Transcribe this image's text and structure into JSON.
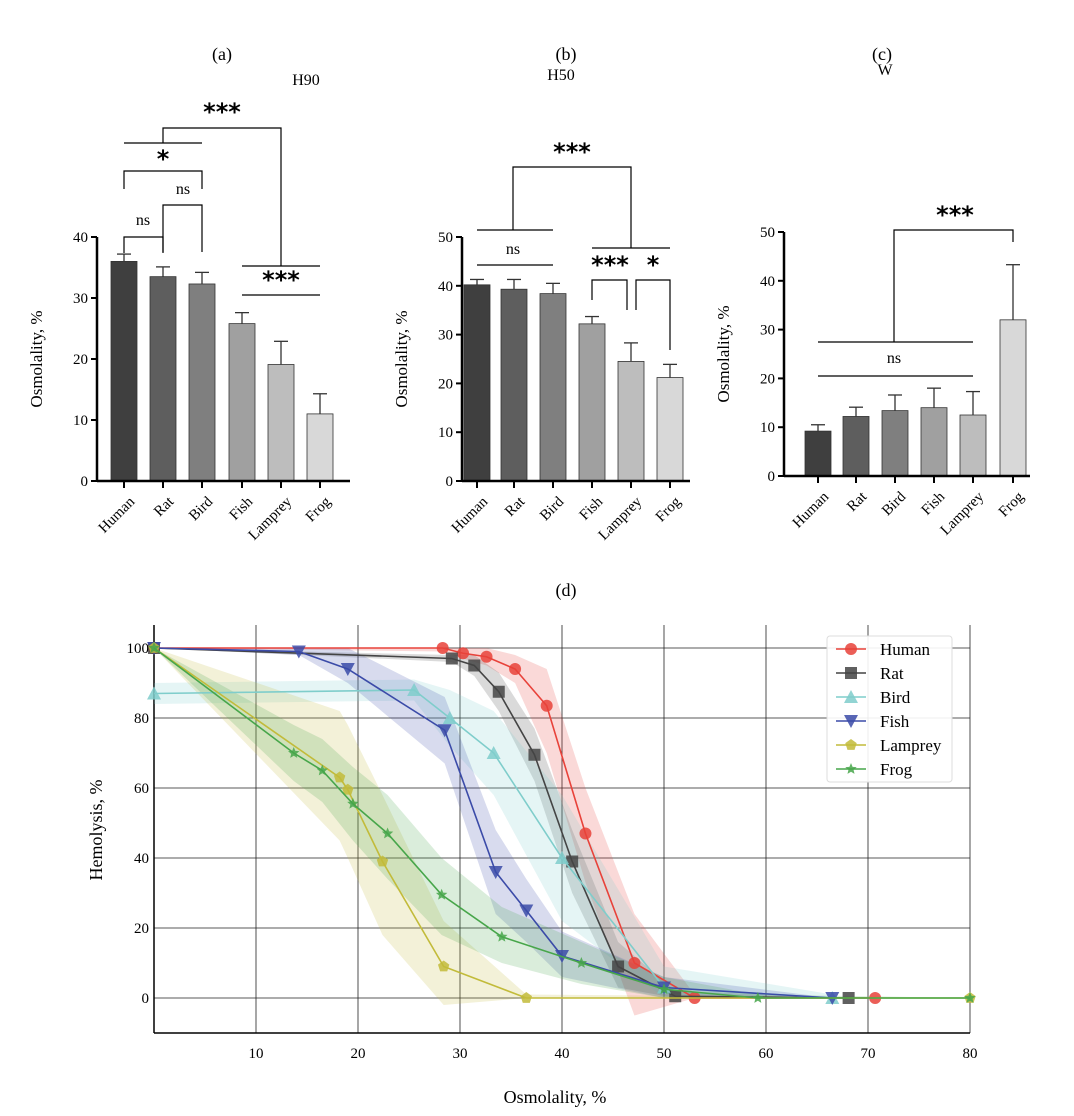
{
  "chart_data": [
    {
      "type": "bar",
      "panel_label": "(a)",
      "title": "H90",
      "ylabel": "Osmolality, %",
      "ylim": [
        0,
        40
      ],
      "yticks": [
        0,
        10,
        20,
        30,
        40
      ],
      "categories": [
        "Human",
        "Rat",
        "Bird",
        "Fish",
        "Lamprey",
        "Frog"
      ],
      "values": [
        36,
        33.5,
        32.3,
        25.8,
        19.1,
        11
      ],
      "error_upper": [
        37.2,
        35.1,
        34.2,
        27.6,
        22.9,
        14.3
      ],
      "colors": [
        "#3f3f3f",
        "#5e5e5e",
        "#7f7f7f",
        "#a0a0a0",
        "#bdbdbd",
        "#d8d8d8"
      ],
      "significance": [
        {
          "label": "ns",
          "groups": [
            "Human",
            "Rat"
          ]
        },
        {
          "label": "ns",
          "groups": [
            "Rat",
            "Bird"
          ]
        },
        {
          "label": "*",
          "groups": [
            "Human",
            "Bird"
          ]
        },
        {
          "label": "***",
          "groups": [
            "Human-Rat-Bird",
            "Fish-Lamprey-Frog"
          ]
        },
        {
          "label": "***",
          "groups": [
            "Fish",
            "Frog"
          ]
        }
      ]
    },
    {
      "type": "bar",
      "panel_label": "(b)",
      "title": "H50",
      "ylabel": "Osmolality, %",
      "ylim": [
        0,
        50
      ],
      "yticks": [
        0,
        10,
        20,
        30,
        40,
        50
      ],
      "categories": [
        "Human",
        "Rat",
        "Bird",
        "Fish",
        "Lamprey",
        "Frog"
      ],
      "values": [
        40.2,
        39.3,
        38.4,
        32.2,
        24.5,
        21.2
      ],
      "error_upper": [
        41.3,
        41.3,
        40.5,
        33.7,
        28.3,
        23.9
      ],
      "colors": [
        "#3f3f3f",
        "#5e5e5e",
        "#7f7f7f",
        "#a0a0a0",
        "#bdbdbd",
        "#d8d8d8"
      ],
      "significance": [
        {
          "label": "ns",
          "groups": [
            "Human",
            "Bird"
          ]
        },
        {
          "label": "***",
          "groups": [
            "Human-Rat-Bird",
            "Fish-Frog"
          ]
        },
        {
          "label": "***",
          "groups": [
            "Fish",
            "Lamprey"
          ]
        },
        {
          "label": "*",
          "groups": [
            "Lamprey",
            "Frog"
          ]
        }
      ]
    },
    {
      "type": "bar",
      "panel_label": "(c)",
      "title": "W",
      "ylabel": "Osmolality, %",
      "ylim": [
        0,
        50
      ],
      "yticks": [
        0,
        10,
        20,
        30,
        40,
        50
      ],
      "categories": [
        "Human",
        "Rat",
        "Bird",
        "Fish",
        "Lamprey",
        "Frog"
      ],
      "values": [
        9.2,
        12.2,
        13.4,
        14,
        12.5,
        32
      ],
      "error_upper": [
        10.5,
        14.1,
        16.6,
        18,
        17.3,
        43.3
      ],
      "colors": [
        "#3f3f3f",
        "#5e5e5e",
        "#7f7f7f",
        "#a0a0a0",
        "#bdbdbd",
        "#d8d8d8"
      ],
      "significance": [
        {
          "label": "ns",
          "groups": [
            "Human",
            "Lamprey"
          ]
        },
        {
          "label": "***",
          "groups": [
            "Human-Lamprey",
            "Frog"
          ]
        }
      ]
    },
    {
      "type": "line",
      "panel_label": "(d)",
      "xlabel": "Osmolality, %",
      "ylabel": "Hemolysis, %",
      "xlim": [
        0,
        80
      ],
      "ylim": [
        -10,
        105
      ],
      "xticks": [
        10,
        20,
        30,
        40,
        50,
        60,
        70,
        80
      ],
      "yticks": [
        0,
        20,
        40,
        60,
        80,
        100
      ],
      "grid": true,
      "legend": "top-right",
      "series": [
        {
          "name": "Human",
          "color": "#e8423a",
          "marker": "circle",
          "x": [
            0,
            28.3,
            30.3,
            32.6,
            35.4,
            38.5,
            42.3,
            47.1,
            53,
            70.7
          ],
          "y": [
            100,
            100,
            98.5,
            97.5,
            94,
            83.5,
            47,
            10,
            0,
            0
          ],
          "lower": [
            100,
            99,
            97,
            95,
            90,
            70,
            33,
            -5,
            0,
            0
          ],
          "upper": [
            100,
            100,
            100,
            100,
            98,
            94,
            60,
            24,
            1,
            0
          ]
        },
        {
          "name": "Rat",
          "color": "#444444",
          "marker": "square",
          "x": [
            0,
            29.2,
            31.4,
            33.8,
            37.3,
            41,
            45.5,
            51.1,
            68.1
          ],
          "y": [
            100,
            97,
            95,
            87.5,
            69.5,
            39,
            9,
            0.5,
            0
          ],
          "lower": [
            100,
            96,
            92,
            82,
            62,
            30,
            3,
            0,
            0
          ],
          "upper": [
            100,
            98,
            98,
            93,
            77,
            48,
            16,
            2,
            0
          ]
        },
        {
          "name": "Bird",
          "color": "#7fcdcb",
          "marker": "triangle-up",
          "x": [
            0,
            25.5,
            29,
            33.3,
            40,
            50,
            66.5
          ],
          "y": [
            87,
            88,
            80,
            70,
            40,
            3,
            0
          ],
          "lower": [
            84,
            85,
            72,
            58,
            22,
            0,
            0
          ],
          "upper": [
            90,
            91,
            88,
            82,
            58,
            9,
            1
          ]
        },
        {
          "name": "Fish",
          "color": "#3b4ba8",
          "marker": "triangle-down",
          "x": [
            0,
            14.2,
            19,
            28.5,
            33.5,
            36.5,
            40,
            50,
            66.5
          ],
          "y": [
            100,
            99,
            94,
            76.5,
            36,
            25,
            12,
            3,
            0
          ],
          "lower": [
            100,
            98,
            90,
            67,
            24,
            16,
            6,
            0,
            0
          ],
          "upper": [
            100,
            100,
            100,
            86,
            48,
            34,
            19,
            6,
            0
          ]
        },
        {
          "name": "Lamprey",
          "color": "#c2bb3a",
          "marker": "pentagon",
          "x": [
            0,
            18.2,
            19,
            22.4,
            28.4,
            36.5,
            80
          ],
          "y": [
            100,
            63,
            59.5,
            39,
            9,
            0,
            0
          ],
          "lower": [
            100,
            45,
            40,
            18,
            -2,
            0,
            0
          ],
          "upper": [
            100,
            82,
            78,
            58,
            22,
            1,
            0
          ]
        },
        {
          "name": "Frog",
          "color": "#47a64a",
          "marker": "star",
          "x": [
            0,
            13.7,
            16.5,
            19.5,
            22.9,
            28.2,
            34.1,
            41.9,
            50,
            59.2,
            80
          ],
          "y": [
            100,
            70,
            65,
            55.5,
            47,
            29.5,
            17.5,
            10,
            2.5,
            0,
            0
          ],
          "lower": [
            100,
            62,
            56,
            45,
            34,
            18,
            10,
            4,
            0,
            0,
            0
          ],
          "upper": [
            100,
            78,
            74,
            66,
            58,
            40,
            26,
            16,
            6,
            1,
            0
          ]
        }
      ]
    }
  ]
}
